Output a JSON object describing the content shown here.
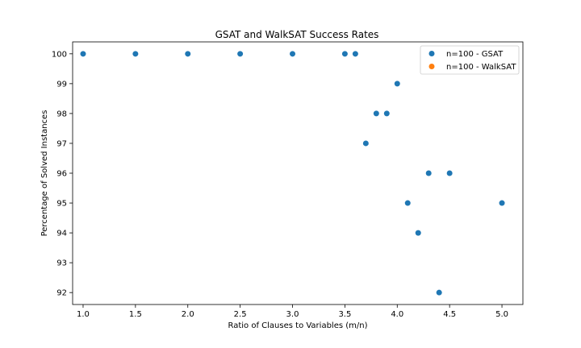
{
  "chart_data": {
    "type": "scatter",
    "title": "GSAT and WalkSAT Success Rates",
    "xlabel": "Ratio of Clauses to Variables (m/n)",
    "ylabel": "Percentage of Solved Instances",
    "xlim": [
      0.9,
      5.2
    ],
    "ylim": [
      91.6,
      100.4
    ],
    "xticks": [
      1.0,
      1.5,
      2.0,
      2.5,
      3.0,
      3.5,
      4.0,
      4.5,
      5.0
    ],
    "xtick_labels": [
      "1.0",
      "1.5",
      "2.0",
      "2.5",
      "3.0",
      "3.5",
      "4.0",
      "4.5",
      "5.0"
    ],
    "yticks": [
      92,
      93,
      94,
      95,
      96,
      97,
      98,
      99,
      100
    ],
    "ytick_labels": [
      "92",
      "93",
      "94",
      "95",
      "96",
      "97",
      "98",
      "99",
      "100"
    ],
    "grid": false,
    "legend_position": "top-right",
    "series": [
      {
        "name": "n=100 - GSAT",
        "color": "#1f77b4",
        "x": [
          1.0,
          1.5,
          2.0,
          2.5,
          3.0,
          3.5,
          3.6,
          3.7,
          3.8,
          3.9,
          4.0,
          4.1,
          4.2,
          4.3,
          4.4,
          4.5,
          5.0
        ],
        "y": [
          100,
          100,
          100,
          100,
          100,
          100,
          100,
          97,
          98,
          98,
          99,
          95,
          94,
          96,
          92,
          96,
          95
        ]
      },
      {
        "name": "n=100 - WalkSAT",
        "color": "#ff7f0e",
        "x": [],
        "y": []
      }
    ]
  }
}
